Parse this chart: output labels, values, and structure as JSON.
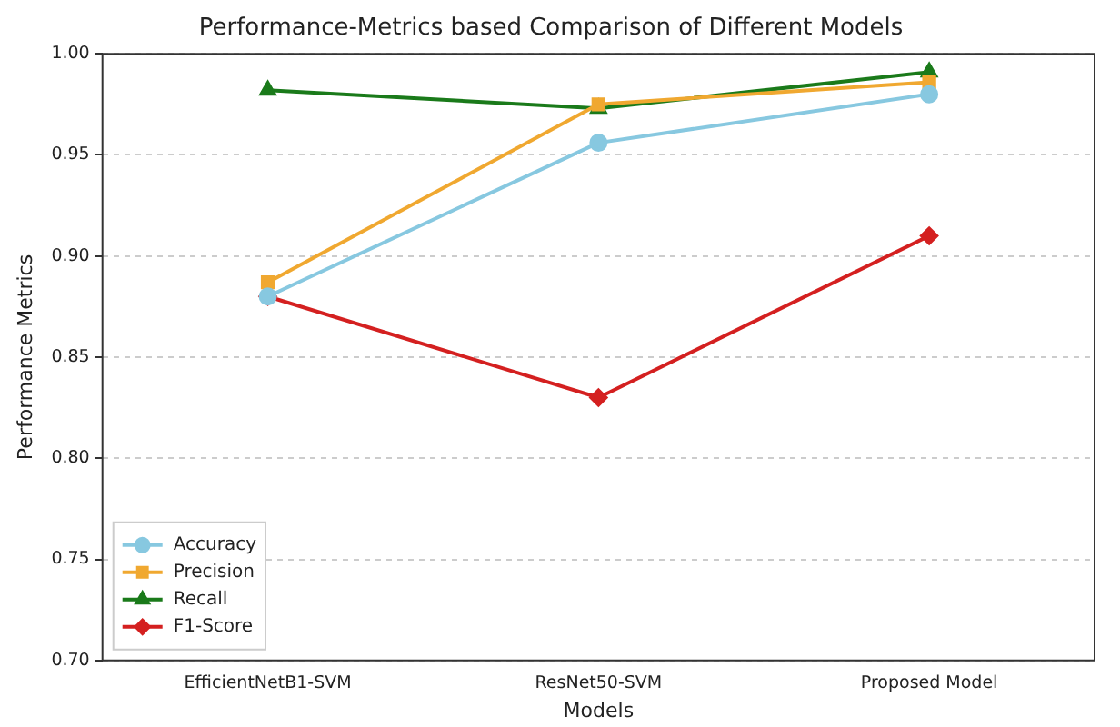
{
  "chart_data": {
    "type": "line",
    "title": "Performance-Metrics based Comparison of Different Models",
    "xlabel": "Models",
    "ylabel": "Performance Metrics",
    "categories": [
      "EfficientNetB1-SVM",
      "ResNet50-SVM",
      "Proposed Model"
    ],
    "series": [
      {
        "name": "Accuracy",
        "color": "#87c8e0",
        "marker": "circle",
        "values": [
          0.88,
          0.956,
          0.98
        ]
      },
      {
        "name": "Precision",
        "color": "#f0a830",
        "marker": "square",
        "values": [
          0.887,
          0.975,
          0.986
        ]
      },
      {
        "name": "Recall",
        "color": "#1a7a1a",
        "marker": "triangle",
        "values": [
          0.982,
          0.973,
          0.991
        ]
      },
      {
        "name": "F1-Score",
        "color": "#d42020",
        "marker": "diamond",
        "values": [
          0.88,
          0.83,
          0.91
        ]
      }
    ],
    "ylim": [
      0.7,
      1.0
    ],
    "yticks": [
      {
        "value": 0.7,
        "label": "0.70"
      },
      0.75,
      {
        "value": 0.8,
        "label": "0.80"
      },
      0.85,
      {
        "value": 0.9,
        "label": "0.90"
      },
      0.95,
      {
        "value": 1.0,
        "label": "1.00"
      }
    ],
    "grid": "y",
    "legend": "bottom left",
    "line_style": "solid"
  }
}
